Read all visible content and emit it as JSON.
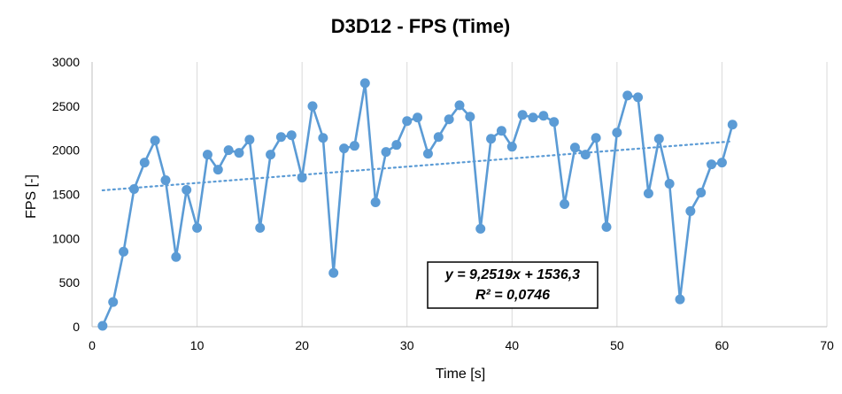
{
  "chart_data": {
    "type": "scatter",
    "title": "D3D12 - FPS (Time)",
    "xlabel": "Time [s]",
    "ylabel": "FPS [-]",
    "xlim": [
      0,
      70
    ],
    "ylim": [
      0,
      3000
    ],
    "x_ticks": [
      0,
      10,
      20,
      30,
      40,
      50,
      60,
      70
    ],
    "y_ticks": [
      0,
      500,
      1000,
      1500,
      2000,
      2500,
      3000
    ],
    "grid": "vertical",
    "series": [
      {
        "name": "FPS",
        "color": "#5b9bd5",
        "x": [
          1,
          2,
          3,
          4,
          5,
          6,
          7,
          8,
          9,
          10,
          11,
          12,
          13,
          14,
          15,
          16,
          17,
          18,
          19,
          20,
          21,
          22,
          23,
          24,
          25,
          26,
          27,
          28,
          29,
          30,
          31,
          32,
          33,
          34,
          35,
          36,
          37,
          38,
          39,
          40,
          41,
          42,
          43,
          44,
          45,
          46,
          47,
          48,
          49,
          50,
          51,
          52,
          53,
          54,
          55,
          56,
          57,
          58,
          59,
          60,
          61
        ],
        "y": [
          10,
          280,
          850,
          1560,
          1860,
          2110,
          1660,
          790,
          1550,
          1120,
          1950,
          1780,
          2000,
          1970,
          2120,
          1120,
          1950,
          2150,
          2170,
          1690,
          2500,
          2140,
          610,
          2020,
          2050,
          2760,
          1410,
          1980,
          2060,
          2330,
          2370,
          1960,
          2150,
          2350,
          2510,
          2380,
          1110,
          2130,
          2220,
          2040,
          2400,
          2370,
          2390,
          2320,
          1390,
          2030,
          1950,
          2140,
          1130,
          2200,
          2620,
          2600,
          1510,
          2130,
          1620,
          310,
          1310,
          1520,
          1840,
          1860,
          2290
        ]
      }
    ],
    "trendline": {
      "type": "linear",
      "slope": 9.2519,
      "intercept": 1536.3,
      "x_range": [
        1,
        61
      ],
      "color": "#5b9bd5",
      "equation": "y = 9,2519x + 1536,3",
      "r_squared": "R² = 0,0746"
    }
  }
}
